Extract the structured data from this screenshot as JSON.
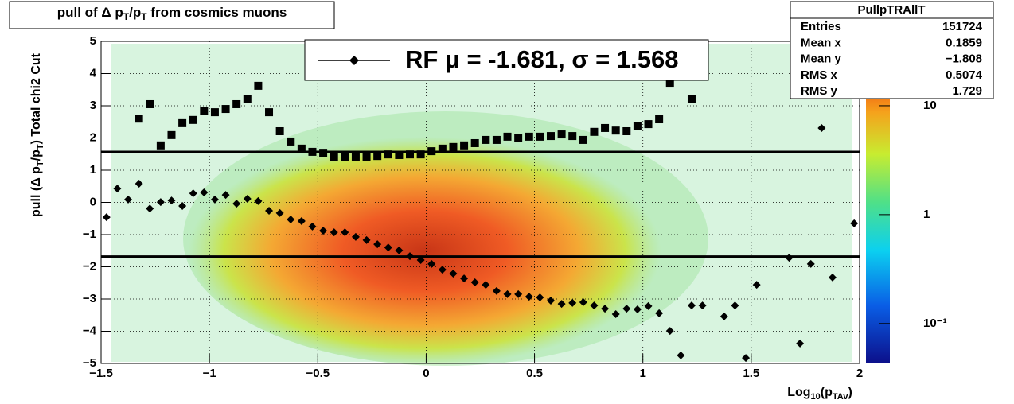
{
  "chart_data": {
    "type": "profile",
    "title_parts": [
      "pull of Δ p",
      "T",
      "/p",
      "T",
      " from cosmics muons"
    ],
    "ylabel_parts": [
      "pull (Δ p",
      "T",
      "/p",
      "T",
      ")  Total chi2 Cut"
    ],
    "xlabel_parts": [
      "Log",
      "10",
      "(p",
      "TAv",
      ")"
    ],
    "x": [
      -1.475,
      -1.425,
      -1.375,
      -1.325,
      -1.275,
      -1.225,
      -1.175,
      -1.125,
      -1.075,
      -1.025,
      -0.975,
      -0.925,
      -0.875,
      -0.825,
      -0.775,
      -0.725,
      -0.675,
      -0.625,
      -0.575,
      -0.525,
      -0.475,
      -0.425,
      -0.375,
      -0.325,
      -0.275,
      -0.225,
      -0.175,
      -0.125,
      -0.075,
      -0.025,
      0.025,
      0.075,
      0.125,
      0.175,
      0.225,
      0.275,
      0.325,
      0.375,
      0.425,
      0.475,
      0.525,
      0.575,
      0.625,
      0.675,
      0.725,
      0.775,
      0.825,
      0.875,
      0.925,
      0.975,
      1.025,
      1.075,
      1.125,
      1.175,
      1.225,
      1.275,
      1.325,
      1.375,
      1.425,
      1.475,
      1.525,
      1.575,
      1.625,
      1.675,
      1.725,
      1.775,
      1.825,
      1.875,
      1.925,
      1.975
    ],
    "series": [
      {
        "marker": "square",
        "color": "#000000",
        "values": [
          null,
          null,
          null,
          2.6,
          3.05,
          1.77,
          2.09,
          2.46,
          2.56,
          2.85,
          2.8,
          2.9,
          3.05,
          3.22,
          3.62,
          2.8,
          2.21,
          1.89,
          1.67,
          1.57,
          1.54,
          1.42,
          1.42,
          1.42,
          1.42,
          1.44,
          1.49,
          1.47,
          1.49,
          1.49,
          1.59,
          1.67,
          1.72,
          1.77,
          1.84,
          1.94,
          1.94,
          2.04,
          1.99,
          2.04,
          2.04,
          2.06,
          2.11,
          2.06,
          1.94,
          2.19,
          2.31,
          2.23,
          2.21,
          2.38,
          2.43,
          2.58,
          3.69,
          null,
          3.22,
          null,
          null,
          null,
          null,
          null,
          null,
          null,
          null,
          null,
          null,
          null,
          null,
          null,
          null,
          null
        ]
      },
      {
        "marker": "diamond",
        "color": "#000000",
        "name": "RF μ = -1.681, σ =   1.568",
        "values": [
          -0.46,
          0.43,
          0.09,
          0.58,
          -0.19,
          0.01,
          0.06,
          -0.11,
          0.28,
          0.31,
          0.09,
          0.23,
          -0.04,
          0.11,
          0.04,
          -0.26,
          -0.33,
          -0.53,
          -0.58,
          -0.75,
          -0.88,
          -0.93,
          -0.93,
          -1.07,
          -1.17,
          -1.3,
          -1.4,
          -1.49,
          -1.67,
          -1.79,
          -1.91,
          -2.09,
          -2.21,
          -2.36,
          -2.48,
          -2.56,
          -2.75,
          -2.85,
          -2.85,
          -2.93,
          -2.95,
          -3.05,
          -3.15,
          -3.12,
          -3.1,
          -3.2,
          -3.3,
          -3.47,
          -3.3,
          -3.32,
          -3.22,
          -3.44,
          -3.99,
          -4.75,
          -3.2,
          -3.2,
          null,
          -3.54,
          -3.2,
          -4.83,
          -2.56,
          null,
          null,
          -1.72,
          -4.38,
          -1.91,
          2.31,
          -2.33,
          null,
          -0.65
        ]
      }
    ],
    "hlines": [
      1.568,
      -1.681
    ],
    "xlim": [
      -1.5,
      2
    ],
    "ylim": [
      -5,
      5
    ],
    "xticks": [
      {
        "value": -1.5,
        "label": "−1.5"
      },
      {
        "value": -1,
        "label": "−1"
      },
      {
        "value": -0.5,
        "label": "−0.5"
      },
      0,
      0.5,
      1,
      1.5,
      2
    ],
    "yticks": [
      {
        "value": -5,
        "label": "−5"
      },
      {
        "value": -4,
        "label": "−4"
      },
      {
        "value": -3,
        "label": "−3"
      },
      {
        "value": -2,
        "label": "−2"
      },
      {
        "value": -1,
        "label": "−1"
      },
      0,
      1,
      2,
      3,
      4,
      5
    ],
    "grid": true,
    "zlim": [
      0.043,
      39
    ],
    "zlog": true,
    "zticks": [
      10,
      1,
      {
        "value": 0.1,
        "label": "10⁻¹"
      }
    ],
    "stats": {
      "title": "PullpTRAllT",
      "rows": [
        [
          "Entries",
          "151724"
        ],
        [
          "Mean x",
          "0.1859"
        ],
        [
          "Mean y",
          "−1.808"
        ],
        [
          "RMS x",
          "0.5074"
        ],
        [
          "RMS y",
          "1.729"
        ]
      ]
    }
  }
}
